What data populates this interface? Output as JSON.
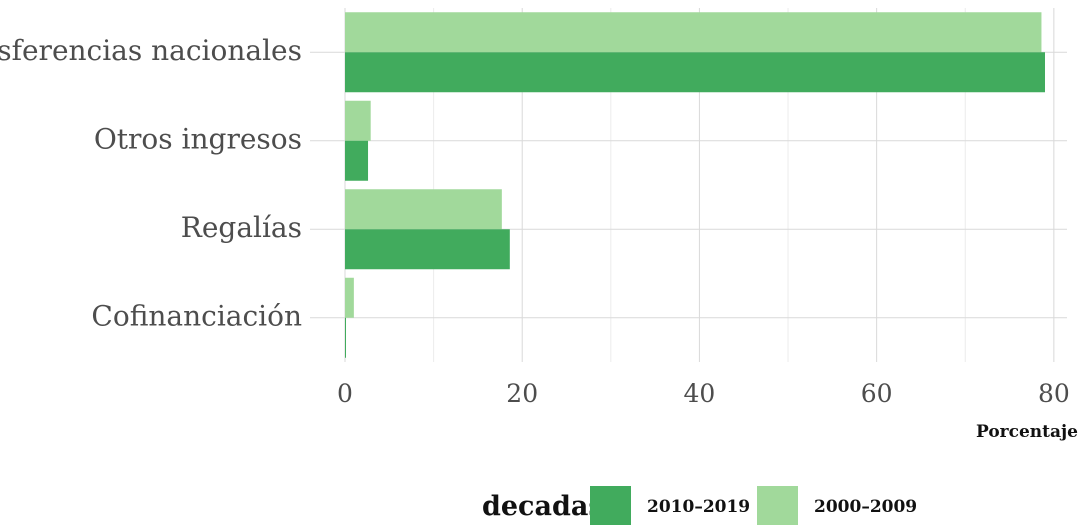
{
  "chart_data": {
    "type": "bar",
    "orientation": "horizontal",
    "categories": [
      "Transferencias nacionales",
      "Otros ingresos",
      "Regalías",
      "Cofinanciación"
    ],
    "series": [
      {
        "name": "2010–2019",
        "values": [
          79.0,
          2.6,
          18.6,
          0.1
        ],
        "color": "#41ab5d"
      },
      {
        "name": "2000–2009",
        "values": [
          78.6,
          2.9,
          17.7,
          1.0
        ],
        "color": "#a1d99b"
      }
    ],
    "xlabel": "Porcentaje",
    "ylabel": "",
    "title": "",
    "xlim": [
      0,
      81
    ],
    "xticks": [
      0,
      20,
      40,
      60,
      80
    ],
    "grid": true,
    "legend": {
      "title": "decadas",
      "position": "bottom"
    }
  }
}
